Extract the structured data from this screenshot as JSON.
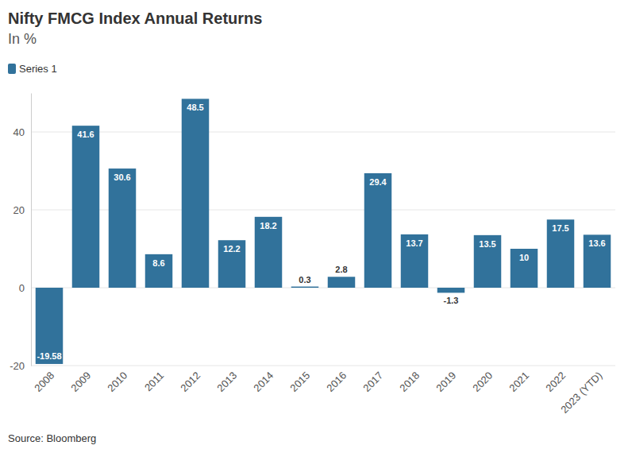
{
  "chart_data": {
    "type": "bar",
    "title": "Nifty FMCG Index Annual Returns",
    "subtitle": "In %",
    "source": "Source: Bloomberg",
    "categories": [
      "2008",
      "2009",
      "2010",
      "2011",
      "2012",
      "2013",
      "2014",
      "2015",
      "2016",
      "2017",
      "2018",
      "2019",
      "2020",
      "2021",
      "2022",
      "2023 (YTD)"
    ],
    "series": [
      {
        "name": "Series 1",
        "color": "#31729b",
        "values": [
          -19.58,
          41.6,
          30.6,
          8.6,
          48.5,
          12.2,
          18.2,
          0.3,
          2.8,
          29.4,
          13.7,
          -1.3,
          13.5,
          10,
          17.5,
          13.6
        ]
      }
    ],
    "ylim": [
      -20,
      50
    ],
    "yticks": [
      -20,
      0,
      20,
      40
    ],
    "grid": true,
    "legend": "top-left",
    "data_labels": true
  }
}
